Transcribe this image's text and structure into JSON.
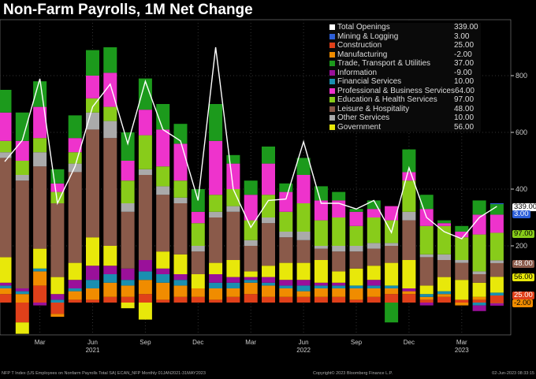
{
  "title": "Non-Farm Payrolls, 1M Net Change",
  "chart_data": {
    "type": "bar",
    "stacked": true,
    "title": "Non-Farm Payrolls, 1M Net Change",
    "ylim": [
      -190,
      1000
    ],
    "yticks": [
      200,
      400,
      600,
      800
    ],
    "ytick_labels": [
      "200",
      "400",
      "600",
      "800"
    ],
    "months": [
      "Jan21",
      "Feb21",
      "Mar21",
      "Apr21",
      "May21",
      "Jun21",
      "Jul21",
      "Aug21",
      "Sep21",
      "Oct21",
      "Nov21",
      "Dec21",
      "Jan22",
      "Feb22",
      "Mar22",
      "Apr22",
      "May22",
      "Jun22",
      "Jul22",
      "Aug22",
      "Sep22",
      "Oct22",
      "Nov22",
      "Dec22",
      "Jan23",
      "Feb23",
      "Mar23",
      "Apr23",
      "May23"
    ],
    "xtick_labels": [
      {
        "i": 2,
        "label": "Mar"
      },
      {
        "i": 5,
        "label": "Jun"
      },
      {
        "i": 8,
        "label": "Sep"
      },
      {
        "i": 11,
        "label": "Dec"
      },
      {
        "i": 14,
        "label": "Mar"
      },
      {
        "i": 17,
        "label": "Jun"
      },
      {
        "i": 20,
        "label": "Sep"
      },
      {
        "i": 23,
        "label": "Dec"
      },
      {
        "i": 26,
        "label": "Mar"
      }
    ],
    "year_labels": [
      {
        "i": 5,
        "label": "2021"
      },
      {
        "i": 17,
        "label": "2022"
      },
      {
        "i": 26,
        "label": "2023"
      }
    ],
    "total": {
      "name": "Total Openings",
      "latest": "339.00",
      "color": "#ffffff",
      "values": [
        497,
        572,
        789,
        350,
        480,
        690,
        770,
        560,
        780,
        610,
        570,
        360,
        900,
        400,
        265,
        360,
        365,
        567,
        350,
        350,
        330,
        360,
        247,
        475,
        300,
        250,
        225,
        300,
        339
      ]
    },
    "series": [
      {
        "name": "Mining & Logging",
        "latest": "3.00",
        "color": "#2d5fd8",
        "values": [
          0,
          0,
          0,
          0,
          0,
          0,
          0,
          0,
          0,
          0,
          0,
          0,
          0,
          0,
          0,
          0,
          0,
          0,
          0,
          0,
          0,
          0,
          0,
          0,
          0,
          0,
          0,
          0,
          3
        ]
      },
      {
        "name": "Construction",
        "latest": "25.00",
        "color": "#e0401a",
        "values": [
          30,
          -70,
          60,
          -40,
          10,
          10,
          20,
          20,
          30,
          10,
          20,
          20,
          10,
          20,
          30,
          20,
          20,
          20,
          20,
          20,
          10,
          20,
          30,
          30,
          10,
          20,
          10,
          10,
          25
        ]
      },
      {
        "name": "Manufacturing",
        "latest": "-2.00",
        "color": "#f08c00",
        "values": [
          20,
          30,
          50,
          -10,
          30,
          40,
          50,
          40,
          50,
          60,
          40,
          30,
          40,
          30,
          40,
          40,
          30,
          20,
          30,
          30,
          40,
          30,
          20,
          10,
          10,
          10,
          -10,
          10,
          -2
        ]
      },
      {
        "name": "Trade, Transport & Utilities",
        "latest": "37.00",
        "color": "#1c9a1c",
        "values": [
          80,
          100,
          90,
          50,
          80,
          90,
          90,
          100,
          110,
          90,
          70,
          80,
          130,
          30,
          50,
          60,
          30,
          60,
          50,
          30,
          10,
          30,
          -70,
          80,
          50,
          10,
          20,
          50,
          37
        ]
      },
      {
        "name": "Information",
        "latest": "-9.00",
        "color": "#9a109a",
        "values": [
          10,
          10,
          -10,
          20,
          30,
          50,
          30,
          40,
          40,
          20,
          20,
          0,
          30,
          20,
          10,
          20,
          20,
          20,
          10,
          10,
          0,
          20,
          0,
          10,
          -10,
          0,
          0,
          -20,
          -9
        ]
      },
      {
        "name": "Financial Services",
        "latest": "10.00",
        "color": "#1a8fb0",
        "values": [
          10,
          10,
          10,
          10,
          10,
          30,
          30,
          20,
          30,
          30,
          20,
          0,
          20,
          20,
          10,
          10,
          10,
          20,
          10,
          10,
          10,
          10,
          10,
          0,
          10,
          10,
          0,
          -10,
          10
        ]
      },
      {
        "name": "Professional & Business Services",
        "latest": "64.00",
        "color": "#ee33cc",
        "values": [
          100,
          70,
          110,
          30,
          50,
          80,
          120,
          70,
          90,
          130,
          130,
          40,
          190,
          90,
          90,
          110,
          70,
          100,
          70,
          60,
          50,
          30,
          50,
          30,
          60,
          10,
          20,
          70,
          64
        ]
      },
      {
        "name": "Education & Health Services",
        "latest": "97.00",
        "color": "#88cc1a",
        "values": [
          40,
          50,
          50,
          40,
          40,
          50,
          50,
          80,
          120,
          70,
          60,
          80,
          60,
          60,
          70,
          80,
          70,
          100,
          90,
          100,
          70,
          90,
          80,
          110,
          100,
          100,
          80,
          130,
          97
        ]
      },
      {
        "name": "Leisure & Hospitality",
        "latest": "48.00",
        "color": "#8a5a4a",
        "values": [
          350,
          380,
          290,
          260,
          320,
          380,
          380,
          200,
          300,
          200,
          180,
          80,
          160,
          170,
          90,
          150,
          90,
          80,
          40,
          70,
          60,
          60,
          60,
          140,
          100,
          60,
          60,
          30,
          48
        ]
      },
      {
        "name": "Other Services",
        "latest": "10.00",
        "color": "#aaaaaa",
        "values": [
          20,
          20,
          50,
          0,
          30,
          60,
          60,
          30,
          20,
          30,
          20,
          20,
          20,
          20,
          20,
          20,
          20,
          30,
          10,
          20,
          20,
          20,
          10,
          30,
          10,
          20,
          10,
          10,
          10
        ]
      },
      {
        "name": "Government",
        "latest": "56.00",
        "color": "#e8e80a",
        "values": [
          90,
          -40,
          70,
          60,
          60,
          100,
          70,
          -20,
          -60,
          60,
          70,
          50,
          40,
          60,
          20,
          40,
          60,
          60,
          80,
          40,
          60,
          50,
          80,
          100,
          30,
          50,
          70,
          50,
          56
        ]
      }
    ],
    "stack_order": [
      1,
      2,
      5,
      4,
      10,
      8,
      9,
      7,
      6,
      3,
      0
    ]
  },
  "tags": [
    {
      "text": "339.00",
      "color": "#ffffff",
      "fg": "#000"
    },
    {
      "text": "3.00",
      "color": "#2d5fd8",
      "fg": "#fff"
    },
    {
      "text": "97.00",
      "color": "#88cc1a",
      "fg": "#000"
    },
    {
      "text": "48.00",
      "color": "#8a5a4a",
      "fg": "#fff"
    },
    {
      "text": "56.00",
      "color": "#e8e80a",
      "fg": "#000"
    },
    {
      "text": "25.00",
      "color": "#e0401a",
      "fg": "#fff"
    },
    {
      "text": "-2.00",
      "color": "#f08c00",
      "fg": "#000"
    }
  ],
  "footer": {
    "source": "NFP T Index (US Employees on Nonfarm Payrolls Total SA) ECAN_NFP  Monthly 01JAN2021-31MAY2023",
    "copyright": "Copyright© 2023 Bloomberg Finance L.P.",
    "timestamp": "02-Jun-2023 08:33:15"
  }
}
